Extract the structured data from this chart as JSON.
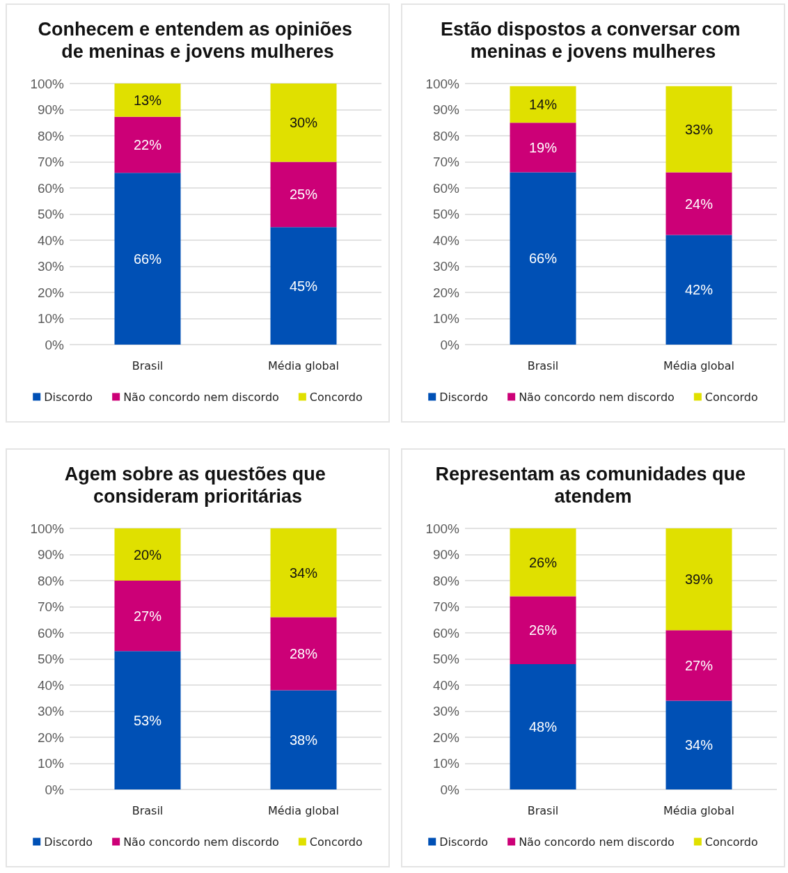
{
  "chart_data": [
    {
      "type": "bar",
      "title": "Conhecem e entendem as opiniões de meninas e jovens mulheres",
      "categories": [
        "Brasil",
        "Média global"
      ],
      "stacked": true,
      "grid": "y",
      "legend": "bottom",
      "ylim": [
        0,
        100
      ],
      "yticks": [
        {
          "value": 0,
          "label": "0%"
        },
        {
          "value": 10,
          "label": "10%"
        },
        {
          "value": 20,
          "label": "20%"
        },
        {
          "value": 30,
          "label": "30%"
        },
        {
          "value": 40,
          "label": "40%"
        },
        {
          "value": 50,
          "label": "50%"
        },
        {
          "value": 60,
          "label": "60%"
        },
        {
          "value": 70,
          "label": "70%"
        },
        {
          "value": 80,
          "label": "80%"
        },
        {
          "value": 90,
          "label": "90%"
        },
        {
          "value": 100,
          "label": "100%"
        }
      ],
      "series": [
        {
          "name": "Discordo",
          "color": "#0050b5",
          "values": [
            65.8,
            45
          ],
          "value_labels": [
            "66%",
            "45%"
          ]
        },
        {
          "name": "Não concordo nem discordo",
          "color": "#cc0077",
          "values": [
            21.5,
            25
          ],
          "value_labels": [
            "22%",
            "25%"
          ]
        },
        {
          "name": "Concordo",
          "color": "#e0e000",
          "values": [
            12.7,
            30
          ],
          "value_labels": [
            "13%",
            "30%"
          ]
        }
      ]
    },
    {
      "type": "bar",
      "title": "Estão dispostos a conversar com meninas e jovens mulheres",
      "categories": [
        "Brasil",
        "Média global"
      ],
      "stacked": true,
      "grid": "y",
      "legend": "bottom",
      "ylim": [
        0,
        100
      ],
      "yticks": [
        {
          "value": 0,
          "label": "0%"
        },
        {
          "value": 10,
          "label": "10%"
        },
        {
          "value": 20,
          "label": "20%"
        },
        {
          "value": 30,
          "label": "30%"
        },
        {
          "value": 40,
          "label": "40%"
        },
        {
          "value": 50,
          "label": "50%"
        },
        {
          "value": 60,
          "label": "60%"
        },
        {
          "value": 70,
          "label": "70%"
        },
        {
          "value": 80,
          "label": "80%"
        },
        {
          "value": 90,
          "label": "90%"
        },
        {
          "value": 100,
          "label": "100%"
        }
      ],
      "series": [
        {
          "name": "Discordo",
          "color": "#0050b5",
          "values": [
            66,
            42
          ],
          "value_labels": [
            "66%",
            "42%"
          ]
        },
        {
          "name": "Não concordo nem discordo",
          "color": "#cc0077",
          "values": [
            19,
            24
          ],
          "value_labels": [
            "19%",
            "24%"
          ]
        },
        {
          "name": "Concordo",
          "color": "#e0e000",
          "values": [
            14,
            33
          ],
          "value_labels": [
            "14%",
            "33%"
          ]
        }
      ]
    },
    {
      "type": "bar",
      "title": "Agem sobre as questões que consideram prioritárias",
      "categories": [
        "Brasil",
        "Média global"
      ],
      "stacked": true,
      "grid": "y",
      "legend": "bottom",
      "ylim": [
        0,
        100
      ],
      "yticks": [
        {
          "value": 0,
          "label": "0%"
        },
        {
          "value": 10,
          "label": "10%"
        },
        {
          "value": 20,
          "label": "20%"
        },
        {
          "value": 30,
          "label": "30%"
        },
        {
          "value": 40,
          "label": "40%"
        },
        {
          "value": 50,
          "label": "50%"
        },
        {
          "value": 60,
          "label": "60%"
        },
        {
          "value": 70,
          "label": "70%"
        },
        {
          "value": 80,
          "label": "80%"
        },
        {
          "value": 90,
          "label": "90%"
        },
        {
          "value": 100,
          "label": "100%"
        }
      ],
      "series": [
        {
          "name": "Discordo",
          "color": "#0050b5",
          "values": [
            53,
            38
          ],
          "value_labels": [
            "53%",
            "38%"
          ]
        },
        {
          "name": "Não concordo nem discordo",
          "color": "#cc0077",
          "values": [
            27,
            28
          ],
          "value_labels": [
            "27%",
            "28%"
          ]
        },
        {
          "name": "Concordo",
          "color": "#e0e000",
          "values": [
            20,
            34
          ],
          "value_labels": [
            "20%",
            "34%"
          ]
        }
      ]
    },
    {
      "type": "bar",
      "title": "Representam as comunidades que atendem",
      "categories": [
        "Brasil",
        "Média global"
      ],
      "stacked": true,
      "grid": "y",
      "legend": "bottom",
      "ylim": [
        0,
        100
      ],
      "yticks": [
        {
          "value": 0,
          "label": "0%"
        },
        {
          "value": 10,
          "label": "10%"
        },
        {
          "value": 20,
          "label": "20%"
        },
        {
          "value": 30,
          "label": "30%"
        },
        {
          "value": 40,
          "label": "40%"
        },
        {
          "value": 50,
          "label": "50%"
        },
        {
          "value": 60,
          "label": "60%"
        },
        {
          "value": 70,
          "label": "70%"
        },
        {
          "value": 80,
          "label": "80%"
        },
        {
          "value": 90,
          "label": "90%"
        },
        {
          "value": 100,
          "label": "100%"
        }
      ],
      "series": [
        {
          "name": "Discordo",
          "color": "#0050b5",
          "values": [
            48,
            34
          ],
          "value_labels": [
            "48%",
            "34%"
          ]
        },
        {
          "name": "Não concordo nem discordo",
          "color": "#cc0077",
          "values": [
            26,
            27
          ],
          "value_labels": [
            "26%",
            "27%"
          ]
        },
        {
          "name": "Concordo",
          "color": "#e0e000",
          "values": [
            26,
            39
          ],
          "value_labels": [
            "26%",
            "39%"
          ]
        }
      ]
    }
  ]
}
